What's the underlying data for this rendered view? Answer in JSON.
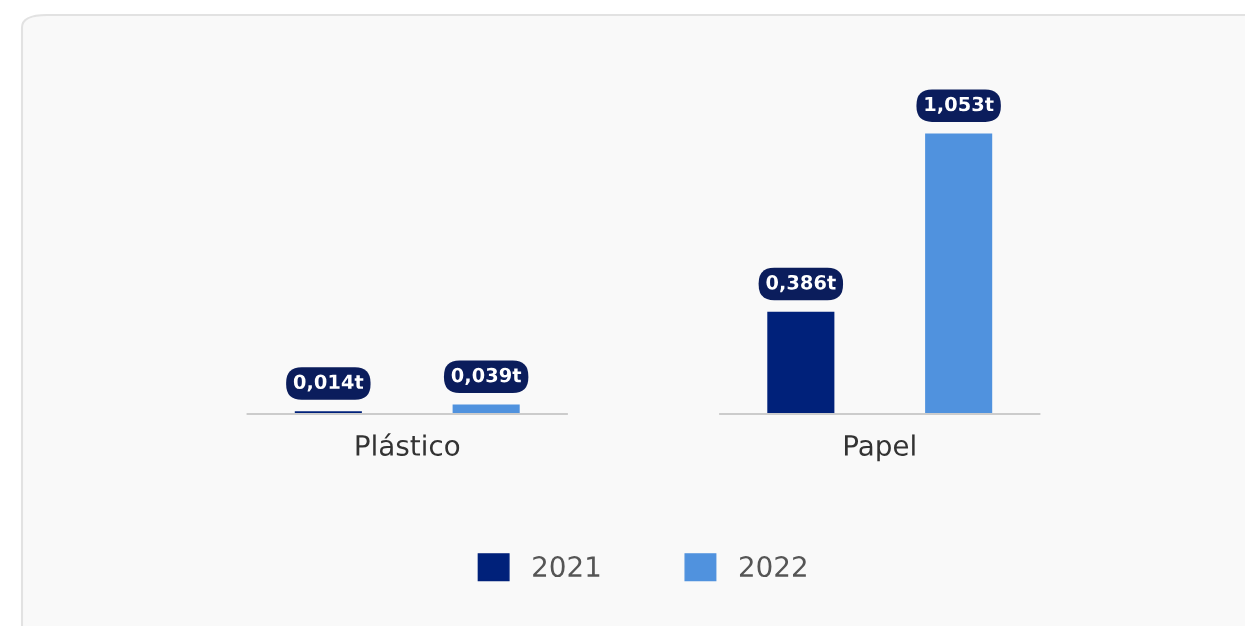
{
  "chart_data": {
    "type": "bar",
    "categories": [
      "Plástico",
      "Papel"
    ],
    "series": [
      {
        "name": "2021",
        "color": "#00217a",
        "values": [
          0.014,
          0.386
        ],
        "value_labels": [
          "0,014t",
          "0,386t"
        ]
      },
      {
        "name": "2022",
        "color": "#5092de",
        "values": [
          0.039,
          1.053
        ],
        "value_labels": [
          "0,039t",
          "1,053t"
        ]
      }
    ],
    "ref_lines": [
      {
        "axis": "y",
        "value": 0,
        "color": "#cccccc"
      }
    ],
    "legend": "bottom",
    "grid": false
  }
}
